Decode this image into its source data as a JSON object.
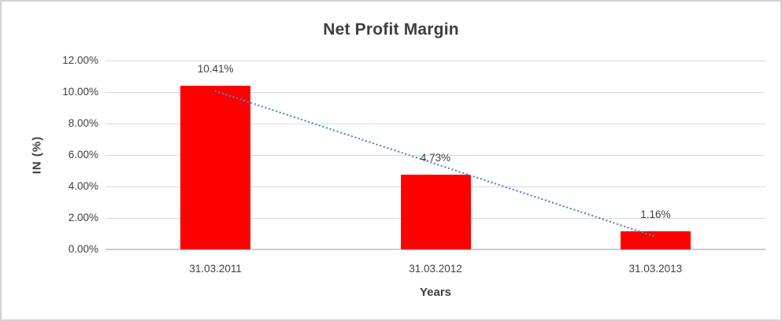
{
  "chart_data": {
    "type": "bar",
    "title": "Net Profit Margin",
    "xlabel": "Years",
    "ylabel": "IN (%)",
    "categories": [
      "31.03.2011",
      "31.03.2012",
      "31.03.2013"
    ],
    "values": [
      10.41,
      4.73,
      1.16
    ],
    "data_labels": [
      "10.41%",
      "4.73%",
      "1.16%"
    ],
    "y_tick_labels": [
      "0.00%",
      "2.00%",
      "4.00%",
      "6.00%",
      "8.00%",
      "10.00%",
      "12.00%"
    ],
    "ylim": [
      0,
      12
    ],
    "grid": true,
    "legend": false,
    "bar_color": "#ff0000",
    "text_color": "#404040",
    "gridline_color": "#d9d9d9",
    "trendline": {
      "type": "linear",
      "style": "dotted",
      "color": "#4c88c9",
      "start_value": 10.06,
      "end_value": 0.81
    }
  }
}
